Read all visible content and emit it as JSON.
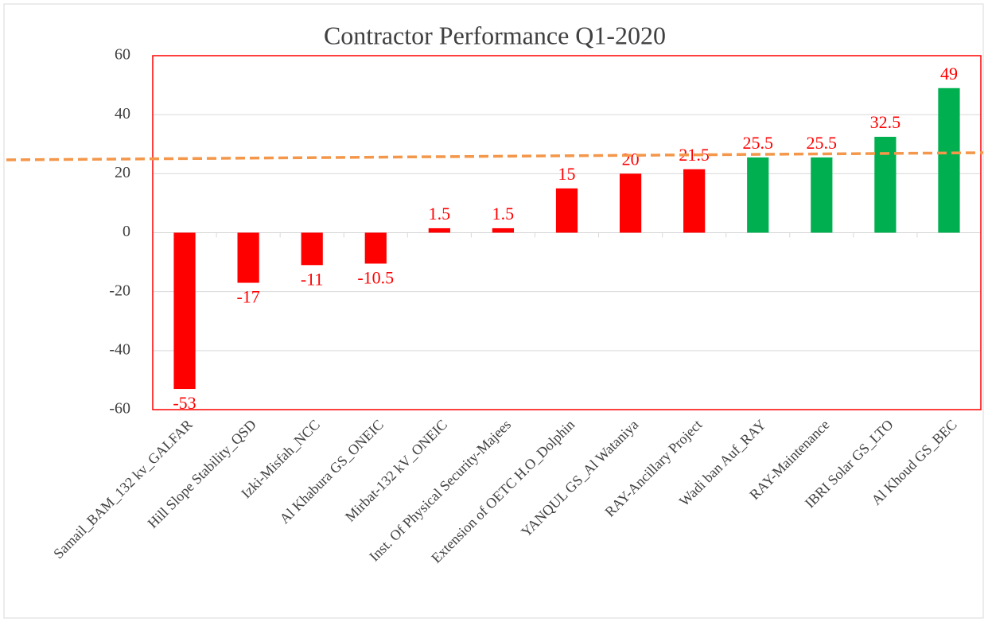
{
  "chart_data": {
    "type": "bar",
    "title": "Contractor Performance Q1-2020",
    "categories": [
      "Samail_BAM_132 kv_GALFAR",
      "Hill Slope Stability_QSD",
      "Izki-Misfah_NCC",
      "Al Khabura GS_ONEIC",
      "Mirbat-132 kV_ONEIC",
      "Inst. Of Physical Security-Majees",
      "Extension of OETC H.O_Dolphin",
      "YANQUL GS_Al Wataniya",
      "RAY-Ancillary Project",
      "Wadi ban Auf_RAY",
      "RAY-Maintenance",
      "IBRI Solar GS_LTO",
      "Al Khoud GS_BEC"
    ],
    "values": [
      -53,
      -17,
      -11,
      -10.5,
      1.5,
      1.5,
      15,
      20,
      21.5,
      25.5,
      25.5,
      32.5,
      49
    ],
    "colors": [
      "#ff0000",
      "#ff0000",
      "#ff0000",
      "#ff0000",
      "#ff0000",
      "#ff0000",
      "#ff0000",
      "#ff0000",
      "#ff0000",
      "#00b050",
      "#00b050",
      "#00b050",
      "#00b050"
    ],
    "label_color": "#ff0000",
    "ylim": [
      -60,
      60
    ],
    "yticks": [
      -60,
      -40,
      -20,
      0,
      20,
      40,
      60
    ],
    "grid": true
  }
}
